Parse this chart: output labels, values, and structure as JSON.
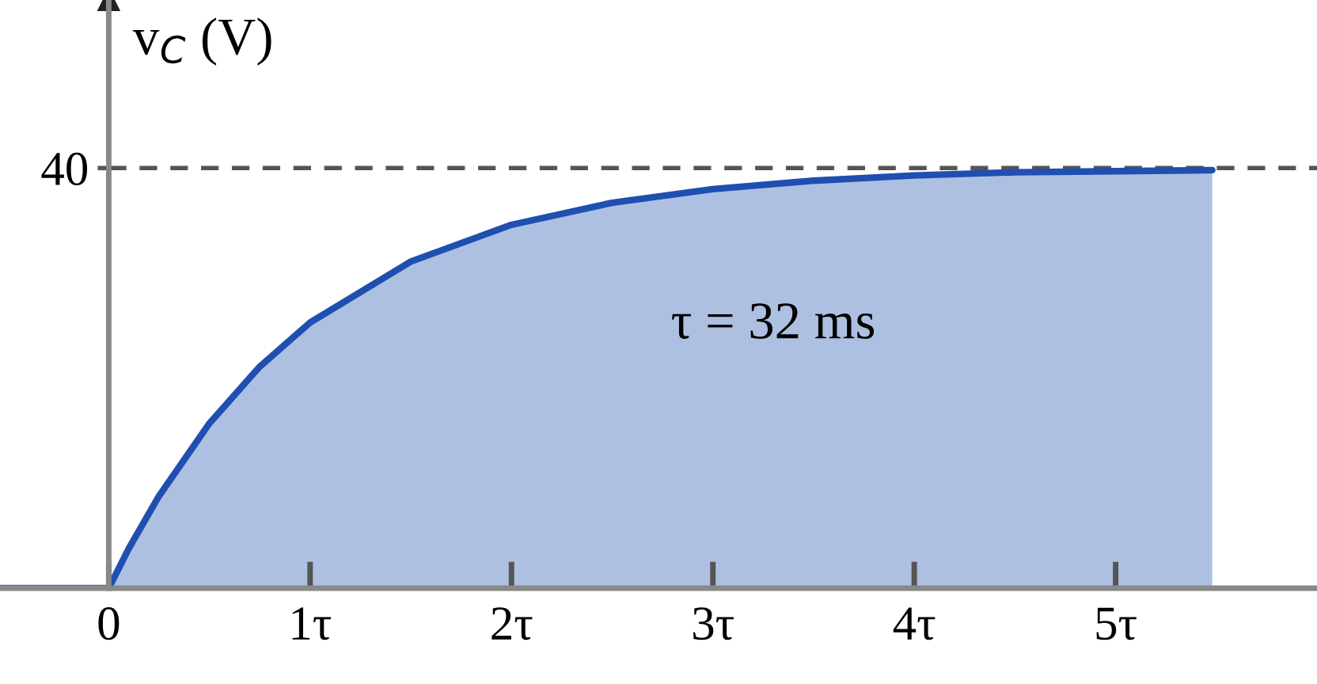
{
  "chart_data": {
    "type": "area",
    "ylabel": "v$_{C}$ (V)",
    "annotations": [
      "τ = 32 ms"
    ],
    "x": [
      -0.54,
      0,
      0.1,
      0.25,
      0.5,
      0.75,
      1,
      1.5,
      2,
      2.5,
      3,
      3.5,
      4,
      4.5,
      5,
      5.48
    ],
    "series": [
      {
        "color": "#1f4fb0",
        "values": [
          0,
          0,
          3.8,
          8.8,
          15.7,
          21.1,
          25.3,
          31.1,
          34.6,
          36.7,
          38.0,
          38.8,
          39.3,
          39.6,
          39.7,
          39.8
        ]
      }
    ],
    "xlim": [
      -0.54,
      6.0
    ],
    "ylim": [
      0,
      56
    ],
    "xticks": [
      {
        "value": 0,
        "label": "0"
      },
      {
        "value": 1,
        "label": "1τ"
      },
      {
        "value": 2,
        "label": "2τ"
      },
      {
        "value": 3,
        "label": "3τ"
      },
      {
        "value": 4,
        "label": "4τ"
      },
      {
        "value": 5,
        "label": "5τ"
      }
    ],
    "yticks": [
      {
        "value": 0,
        "label": null
      },
      {
        "value": 40,
        "label": "40"
      }
    ],
    "ref_lines": [
      {
        "axis": "y",
        "value": 40,
        "label": null,
        "color": "#555555",
        "line_style": "dashed"
      }
    ],
    "grid": false,
    "legend": false
  }
}
